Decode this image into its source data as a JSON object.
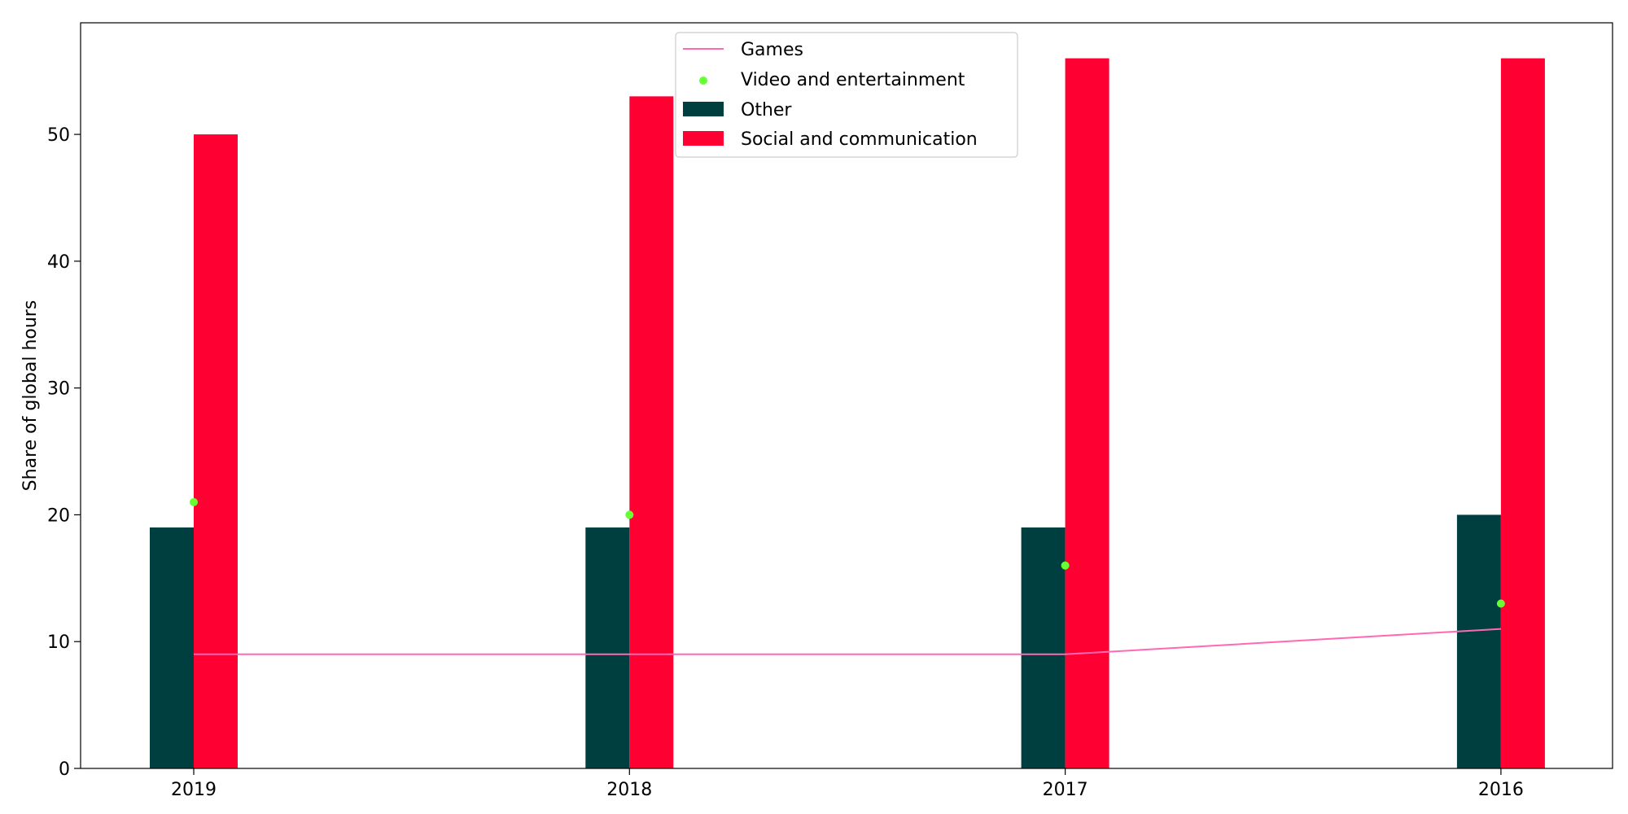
{
  "chart_data": {
    "type": "bar",
    "categories": [
      "2019",
      "2018",
      "2017",
      "2016"
    ],
    "ylabel": "Share of global hours",
    "xlabel": "",
    "ylim": [
      0,
      58.8
    ],
    "yticks": [
      0,
      10,
      20,
      30,
      40,
      50
    ],
    "grid": false,
    "legend_position": "top-center",
    "series": [
      {
        "name": "Games",
        "type": "line",
        "color": "#ff69b4",
        "values": [
          9,
          9,
          9,
          11
        ]
      },
      {
        "name": "Video and entertainment",
        "type": "scatter",
        "color": "#66ff33",
        "values": [
          21,
          20,
          16,
          13
        ]
      },
      {
        "name": "Other",
        "type": "bar",
        "color": "#003f3f",
        "values": [
          19,
          19,
          19,
          20
        ]
      },
      {
        "name": "Social and communication",
        "type": "bar",
        "color": "#ff0033",
        "values": [
          50,
          53,
          56,
          56
        ]
      }
    ]
  }
}
